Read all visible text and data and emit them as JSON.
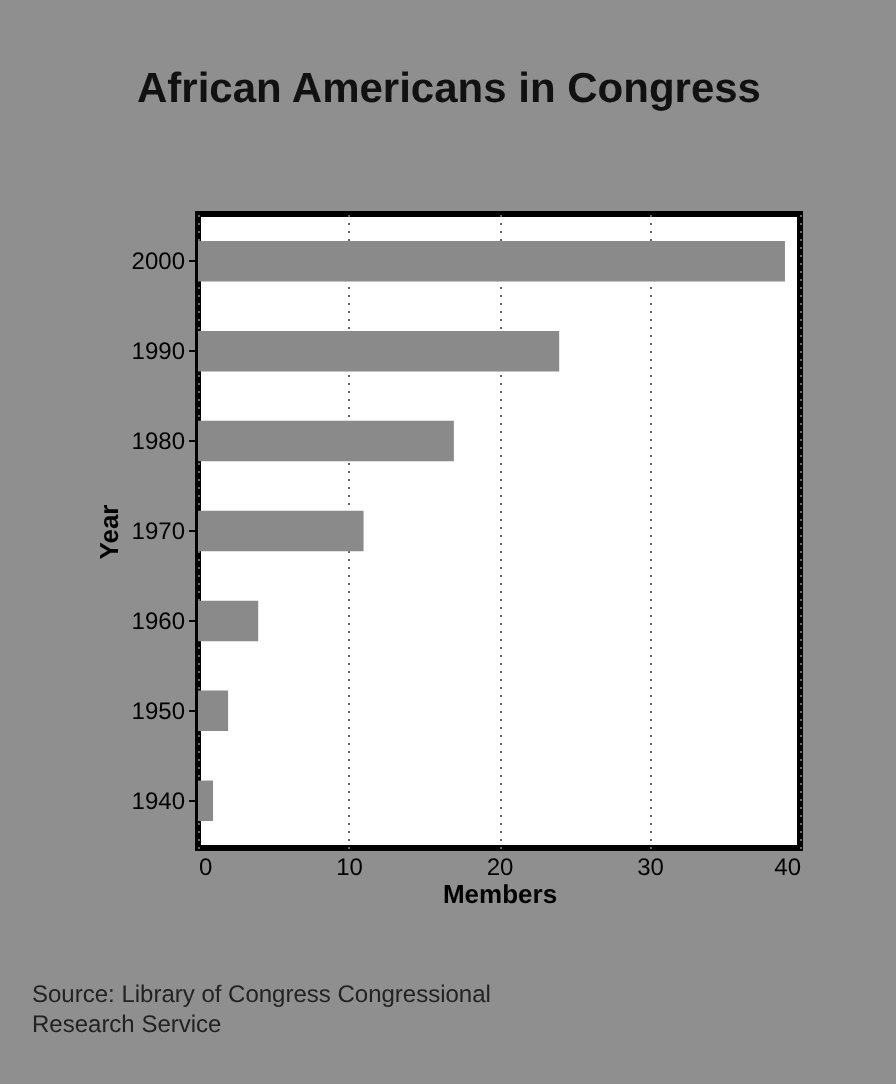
{
  "chart_data": {
    "type": "bar",
    "orientation": "horizontal",
    "title": "African Americans in Congress",
    "xlabel": "Members",
    "ylabel": "Year",
    "categories": [
      "2000",
      "1990",
      "1980",
      "1970",
      "1960",
      "1950",
      "1940"
    ],
    "values": [
      39,
      24,
      17,
      11,
      4,
      2,
      1
    ],
    "color": "#8a8a8a",
    "xlim": [
      0,
      40
    ],
    "xticks": [
      0,
      10,
      20,
      30,
      40
    ],
    "grid": "x",
    "annotations": [
      "Source: Library of Congress Congressional Research Service"
    ]
  }
}
